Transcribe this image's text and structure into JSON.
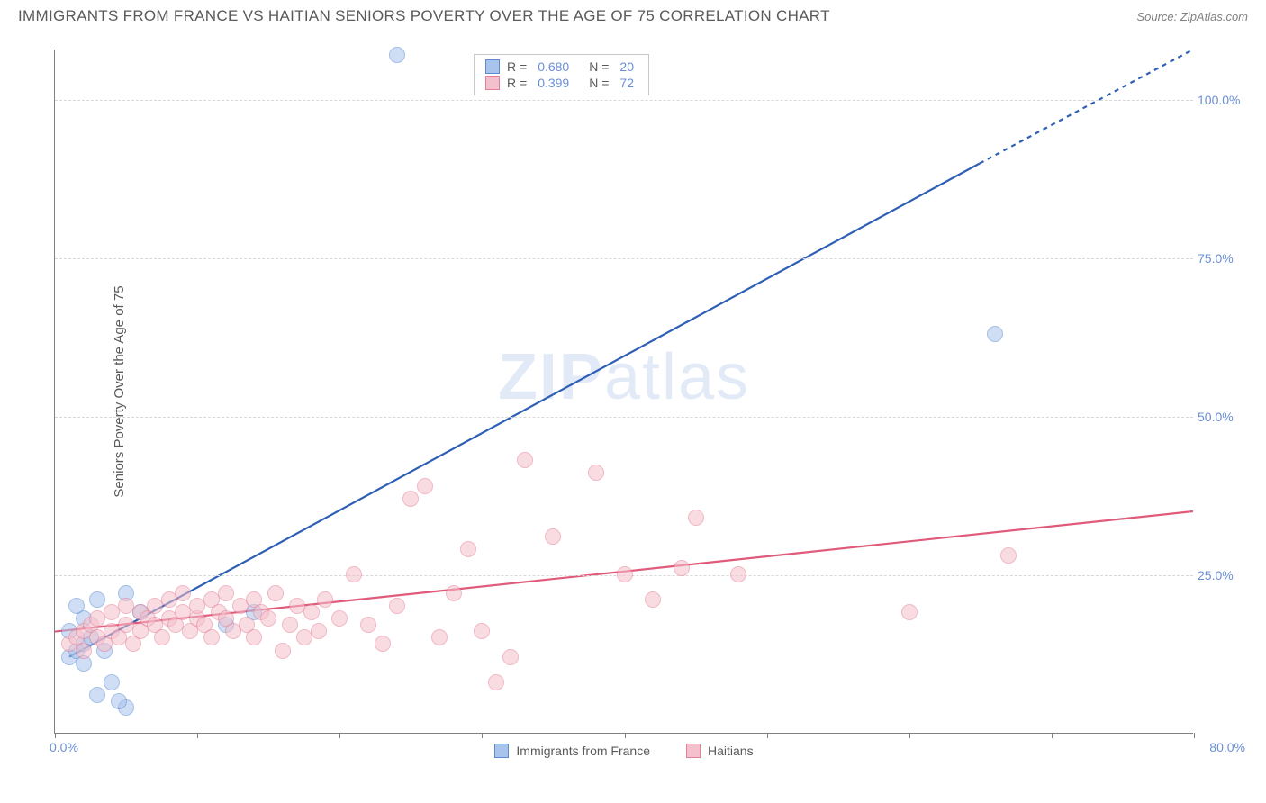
{
  "title": "IMMIGRANTS FROM FRANCE VS HAITIAN SENIORS POVERTY OVER THE AGE OF 75 CORRELATION CHART",
  "source": "Source: ZipAtlas.com",
  "ylabel": "Seniors Poverty Over the Age of 75",
  "watermark": "ZIPatlas",
  "chart": {
    "type": "scatter-correlation",
    "xlim": [
      0,
      80
    ],
    "ylim": [
      0,
      108
    ],
    "x_tick_positions": [
      0,
      10,
      20,
      30,
      40,
      50,
      60,
      70,
      80
    ],
    "x_label_start": "0.0%",
    "x_label_end": "80.0%",
    "y_ticks": [
      {
        "v": 25,
        "label": "25.0%"
      },
      {
        "v": 50,
        "label": "50.0%"
      },
      {
        "v": 75,
        "label": "75.0%"
      },
      {
        "v": 100,
        "label": "100.0%"
      }
    ],
    "background_color": "#ffffff",
    "grid_color": "#d8d8d8",
    "axis_color": "#808080",
    "tick_label_color": "#6b8fd6",
    "marker_radius": 9,
    "marker_opacity": 0.55,
    "line_width": 2.2
  },
  "series": [
    {
      "name": "Immigrants from France",
      "color_fill": "#a9c4ec",
      "color_stroke": "#5b8bd4",
      "line_color": "#2e5fb5",
      "R": "0.680",
      "N": "20",
      "trend": {
        "x1": 1,
        "y1": 12,
        "x2": 65,
        "y2": 90,
        "x2_dash": 80,
        "y2_dash": 108
      },
      "points": [
        [
          1,
          12
        ],
        [
          1.5,
          13
        ],
        [
          2,
          14
        ],
        [
          2,
          11
        ],
        [
          2.5,
          15
        ],
        [
          1,
          16
        ],
        [
          3,
          21
        ],
        [
          3.5,
          13
        ],
        [
          2,
          18
        ],
        [
          1.5,
          20
        ],
        [
          5,
          22
        ],
        [
          4,
          8
        ],
        [
          3,
          6
        ],
        [
          5,
          4
        ],
        [
          4.5,
          5
        ],
        [
          12,
          17
        ],
        [
          14,
          19
        ],
        [
          6,
          19
        ],
        [
          24,
          107
        ],
        [
          66,
          63
        ]
      ]
    },
    {
      "name": "Haitians",
      "color_fill": "#f4c0cb",
      "color_stroke": "#e57f97",
      "line_color": "#e05a7a",
      "R": "0.399",
      "N": "72",
      "trend": {
        "x1": 0,
        "y1": 16,
        "x2": 80,
        "y2": 35
      },
      "points": [
        [
          1,
          14
        ],
        [
          1.5,
          15
        ],
        [
          2,
          13
        ],
        [
          2,
          16
        ],
        [
          2.5,
          17
        ],
        [
          3,
          15
        ],
        [
          3,
          18
        ],
        [
          3.5,
          14
        ],
        [
          4,
          16
        ],
        [
          4,
          19
        ],
        [
          4.5,
          15
        ],
        [
          5,
          17
        ],
        [
          5,
          20
        ],
        [
          5.5,
          14
        ],
        [
          6,
          19
        ],
        [
          6,
          16
        ],
        [
          6.5,
          18
        ],
        [
          7,
          17
        ],
        [
          7,
          20
        ],
        [
          7.5,
          15
        ],
        [
          8,
          21
        ],
        [
          8,
          18
        ],
        [
          8.5,
          17
        ],
        [
          9,
          19
        ],
        [
          9,
          22
        ],
        [
          9.5,
          16
        ],
        [
          10,
          18
        ],
        [
          10,
          20
        ],
        [
          10.5,
          17
        ],
        [
          11,
          21
        ],
        [
          11,
          15
        ],
        [
          11.5,
          19
        ],
        [
          12,
          18
        ],
        [
          12,
          22
        ],
        [
          12.5,
          16
        ],
        [
          13,
          20
        ],
        [
          13.5,
          17
        ],
        [
          14,
          21
        ],
        [
          14,
          15
        ],
        [
          14.5,
          19
        ],
        [
          15,
          18
        ],
        [
          15.5,
          22
        ],
        [
          16,
          13
        ],
        [
          16.5,
          17
        ],
        [
          17,
          20
        ],
        [
          17.5,
          15
        ],
        [
          18,
          19
        ],
        [
          18.5,
          16
        ],
        [
          19,
          21
        ],
        [
          20,
          18
        ],
        [
          21,
          25
        ],
        [
          22,
          17
        ],
        [
          23,
          14
        ],
        [
          24,
          20
        ],
        [
          25,
          37
        ],
        [
          26,
          39
        ],
        [
          27,
          15
        ],
        [
          28,
          22
        ],
        [
          29,
          29
        ],
        [
          30,
          16
        ],
        [
          31,
          8
        ],
        [
          32,
          12
        ],
        [
          33,
          43
        ],
        [
          35,
          31
        ],
        [
          38,
          41
        ],
        [
          40,
          25
        ],
        [
          42,
          21
        ],
        [
          44,
          26
        ],
        [
          45,
          34
        ],
        [
          48,
          25
        ],
        [
          60,
          19
        ],
        [
          67,
          28
        ]
      ]
    }
  ],
  "legend": {
    "rows": [
      {
        "swatch_fill": "#a9c4ec",
        "swatch_stroke": "#5b8bd4",
        "R": "0.680",
        "N": "20"
      },
      {
        "swatch_fill": "#f4c0cb",
        "swatch_stroke": "#e57f97",
        "R": "0.399",
        "N": "72"
      }
    ]
  },
  "x_legend": [
    {
      "swatch_fill": "#a9c4ec",
      "swatch_stroke": "#5b8bd4",
      "label": "Immigrants from France"
    },
    {
      "swatch_fill": "#f4c0cb",
      "swatch_stroke": "#e57f97",
      "label": "Haitians"
    }
  ]
}
